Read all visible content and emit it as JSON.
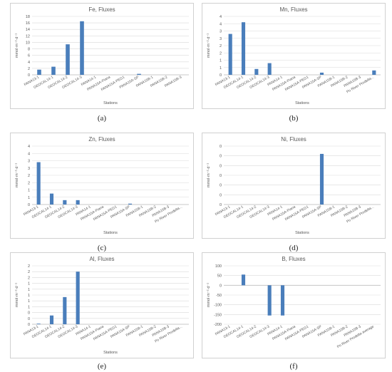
{
  "colors": {
    "bar": "#4a7ebb",
    "grid": "#d9d9d9",
    "text": "#595959"
  },
  "chart_data": [
    {
      "type": "bar",
      "title": "Fe, Fluxes",
      "ylabel": "mmol·m⁻²·d⁻¹",
      "xlabel": "Stations",
      "caption": "(a)",
      "ylim": [
        0,
        18
      ],
      "yticks": [
        "0",
        "2",
        "4",
        "6",
        "8",
        "10",
        "12",
        "14",
        "16",
        "18"
      ],
      "categories": [
        "PANA13-1",
        "GEOCAL14-1",
        "GEOCAL14-2",
        "GEOCAL14-3",
        "PANA14-1",
        "PANA15A-Piana",
        "PANA15A-PEG1",
        "PANA15A-SP",
        "PANA15B-1",
        "PANA15B-2",
        "PANA15B-3"
      ],
      "values": [
        1.6,
        2.5,
        9.4,
        16.5,
        0,
        0,
        0,
        0.3,
        0,
        0,
        0
      ]
    },
    {
      "type": "bar",
      "title": "Mn, Fluxes",
      "ylabel": "mmol·m⁻²·d⁻¹",
      "xlabel": "Stations",
      "caption": "(b)",
      "ylim": [
        0,
        4
      ],
      "yticks": [
        "0",
        "1",
        "1",
        "2",
        "2",
        "3",
        "3",
        "4",
        "4"
      ],
      "categories": [
        "PANA13-1",
        "GEOCAL14-1",
        "GEOCAL14-2",
        "GEOCAL14-3",
        "PANA14-1",
        "PANA15A-Piana",
        "PANA15A-PEG1",
        "PANA15A-SP",
        "PANA15B-1",
        "PANA15B-2",
        "PANA15B-3",
        "Po River Prodelta..."
      ],
      "values": [
        2.8,
        3.6,
        0.4,
        0.8,
        0,
        0,
        0,
        0.15,
        0,
        0,
        0,
        0.3
      ]
    },
    {
      "type": "bar",
      "title": "Zn, Fluxes",
      "ylabel": "mmol·m⁻²·d⁻¹",
      "xlabel": "Stations",
      "caption": "(c)",
      "ylim": [
        0,
        4
      ],
      "yticks": [
        "0",
        "1",
        "1",
        "2",
        "2",
        "3",
        "3",
        "4",
        "4"
      ],
      "categories": [
        "PANA13-1",
        "GEOCAL14-1",
        "GEOCAL14-2",
        "GEOCAL14-3",
        "PANA14-1",
        "PANA15A-Piana",
        "PANA15A-PEG1",
        "PANA15A-SP",
        "PANA15B-1",
        "PANA15B-2",
        "PANA15B-3",
        "Po River Prodelta..."
      ],
      "values": [
        2.9,
        0.75,
        0.3,
        0.3,
        0,
        0,
        0,
        0.06,
        0,
        0,
        0,
        0
      ]
    },
    {
      "type": "bar",
      "title": "Ni, Fluxes",
      "ylabel": "mmol·m⁻²·d⁻¹",
      "xlabel": "Stations",
      "caption": "(d)",
      "ylim": [
        0,
        6
      ],
      "yticks": [
        "0",
        "0",
        "0",
        "0",
        "0",
        "0",
        "0"
      ],
      "categories": [
        "PANA13-1",
        "GEOCAL14-1",
        "GEOCAL14-2",
        "GEOCAL14-3",
        "PANA14-1",
        "PANA15A-Piana",
        "PANA15A-PEG1",
        "PANA15A-SP",
        "PANA15B-1",
        "PANA15B-2",
        "PANA15B-3",
        "Po River Prodelta..."
      ],
      "values": [
        0,
        0,
        0,
        0,
        0,
        0,
        0,
        5.2,
        0,
        0,
        0,
        0
      ]
    },
    {
      "type": "bar",
      "title": "Al, Fluxes",
      "ylabel": "mmol·m⁻²·d⁻¹",
      "xlabel": "Stations",
      "caption": "(e)",
      "ylim": [
        0,
        2
      ],
      "yticks": [
        "0",
        "0",
        "0",
        "1",
        "1",
        "1",
        "1",
        "1",
        "2",
        "2",
        "2"
      ],
      "categories": [
        "PANA13-1",
        "GEOCAL14-1",
        "GEOCAL14-2",
        "GEOCAL14-3",
        "PANA14-1",
        "PANA15A-Piana",
        "PANA15A-PEG1",
        "PANA15A-SP",
        "PANA15B-1",
        "PANA15B-2",
        "PANA15B-3",
        "Po River Prodelta..."
      ],
      "values": [
        0.02,
        0.3,
        0.93,
        1.8,
        0,
        0,
        0,
        0,
        0,
        0,
        0,
        0
      ]
    },
    {
      "type": "bar",
      "title": "B, Fluxes",
      "ylabel": "mmol·m⁻²·d⁻¹",
      "xlabel": "",
      "caption": "(f)",
      "ylim": [
        -200,
        100
      ],
      "yticks": [
        "-200",
        "-150",
        "-100",
        "-50",
        "0",
        "50",
        "100"
      ],
      "categories": [
        "PANA13-1",
        "GEOCAL14-1",
        "GEOCAL14-2",
        "GEOCAL14-3",
        "PANA14-1",
        "PANA15A-Piana",
        "PANA15A-PEG1",
        "PANA15A-SP",
        "PANA15B-1",
        "PANA15B-2",
        "PANA15B-3",
        "Po River Prodelta average"
      ],
      "values": [
        0,
        55,
        0,
        -155,
        -155,
        0,
        0,
        0,
        0,
        0,
        0,
        0
      ]
    }
  ]
}
